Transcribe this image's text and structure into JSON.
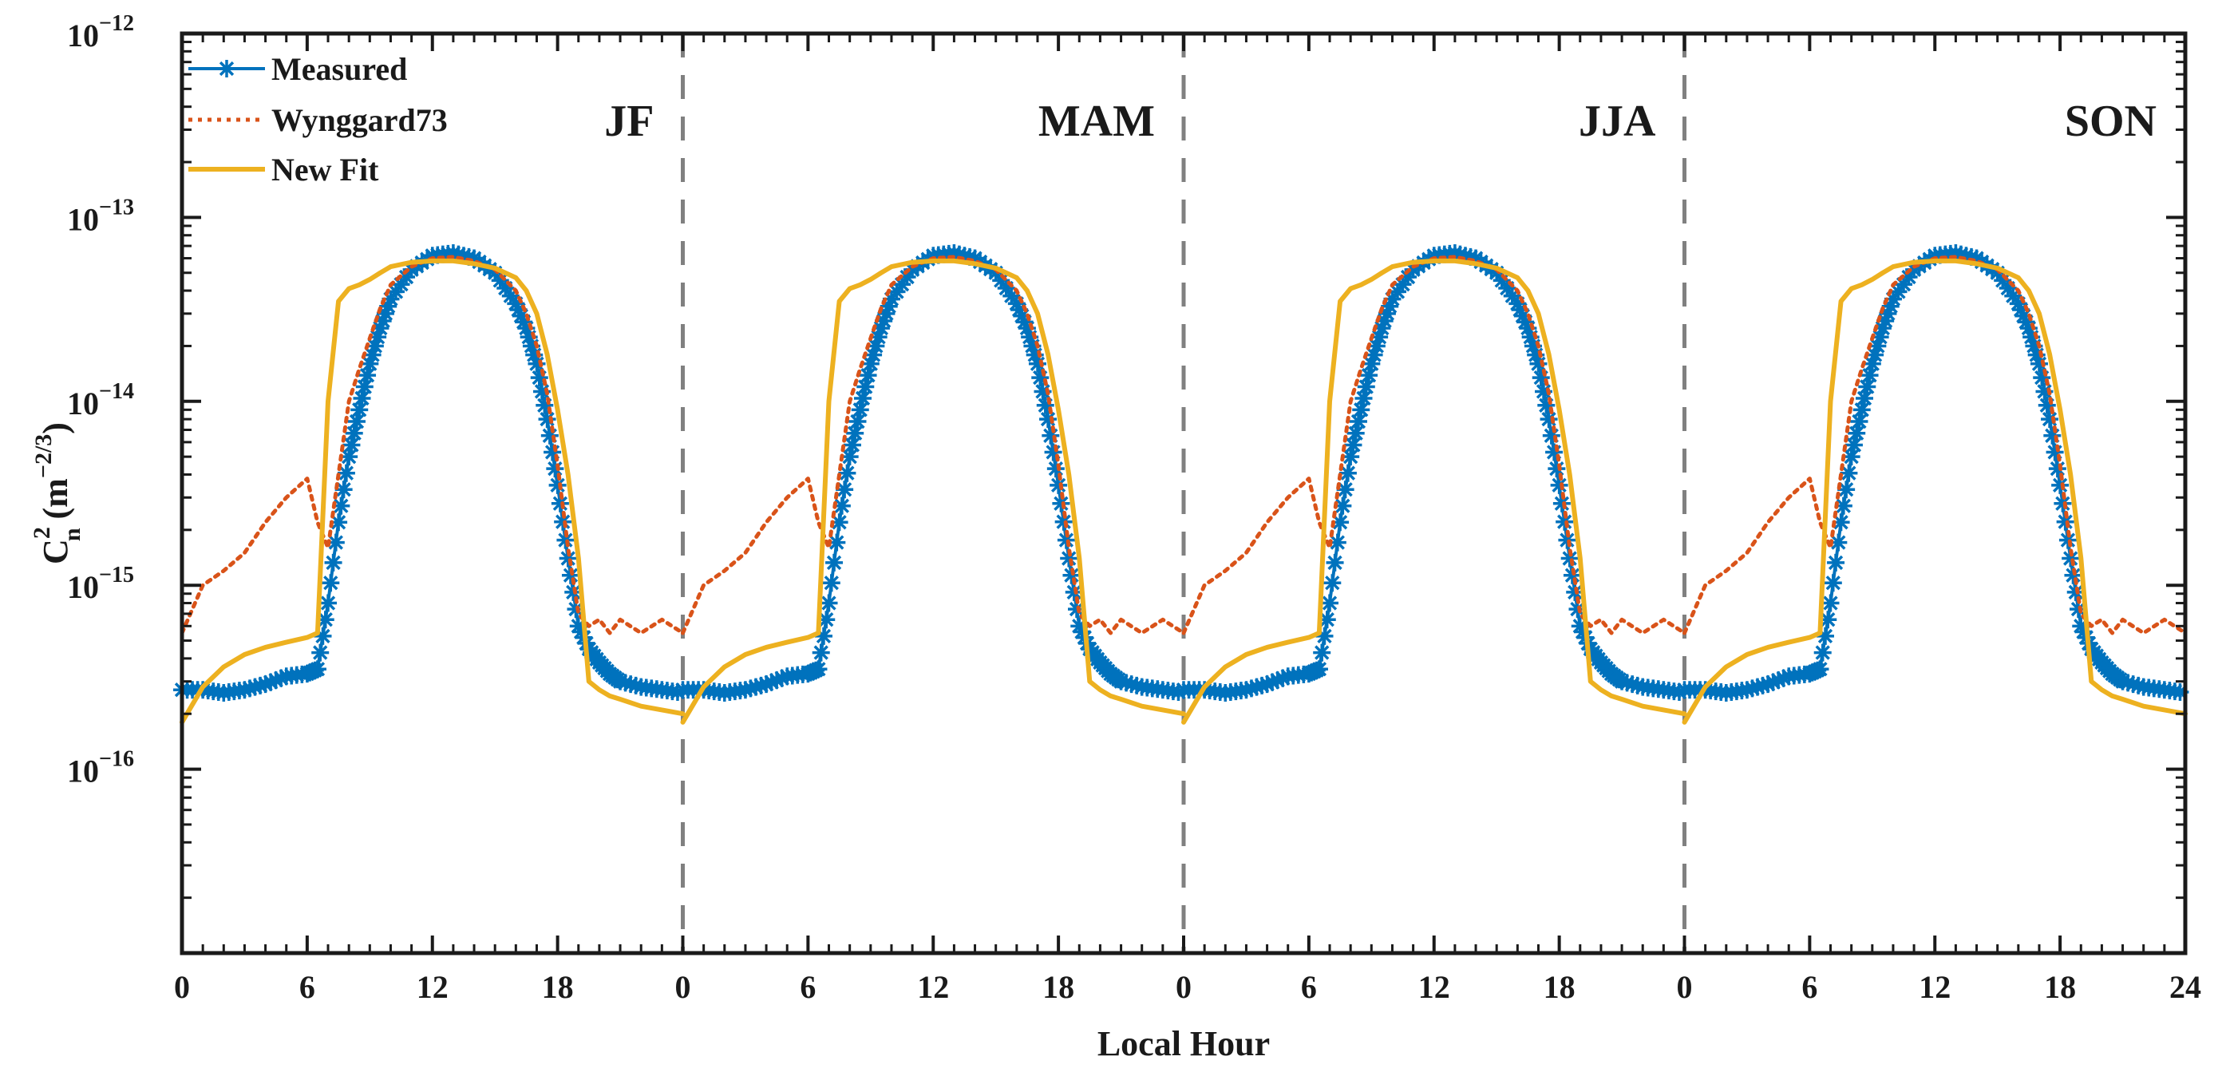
{
  "chart_data": {
    "type": "line",
    "xlabel": "Local Hour",
    "ylabel": {
      "base": "C",
      "sup": "2",
      "sub": "n",
      "units_prefix": " (m",
      "units_exp": "−2/3",
      "units_suffix": ")"
    },
    "yscale": "log",
    "ylim": [
      1e-17,
      1e-12
    ],
    "y_ticks": [
      {
        "base": "10",
        "exp": "−12",
        "value": 1e-12
      },
      {
        "base": "10",
        "exp": "−13",
        "value": 1e-13
      },
      {
        "base": "10",
        "exp": "−14",
        "value": 1e-14
      },
      {
        "base": "10",
        "exp": "−15",
        "value": 1e-15
      },
      {
        "base": "10",
        "exp": "−16",
        "value": 1e-16
      }
    ],
    "x_tick_labels": [
      "0",
      "6",
      "12",
      "18",
      "0",
      "6",
      "12",
      "18",
      "0",
      "6",
      "12",
      "18",
      "0",
      "6",
      "12",
      "18",
      "24"
    ],
    "panels": [
      "JF",
      "MAM",
      "JJA",
      "SON"
    ],
    "hours": [
      0,
      1,
      2,
      3,
      4,
      5,
      6,
      6.5,
      7,
      7.5,
      8,
      8.5,
      9,
      9.5,
      10,
      11,
      12,
      13,
      14,
      15,
      16,
      16.5,
      17,
      17.5,
      18,
      18.5,
      19,
      19.5,
      20,
      20.5,
      21,
      22,
      23,
      24
    ],
    "legend": [
      "Measured",
      "Wynggard73",
      "New Fit"
    ],
    "series": [
      {
        "name": "Measured",
        "color": "#0072BD",
        "values": [
          2.7e-16,
          2.7e-16,
          2.6e-16,
          2.7e-16,
          2.9e-16,
          3.2e-16,
          3.3e-16,
          3.5e-16,
          8e-16,
          2.2e-15,
          5e-15,
          9e-15,
          1.6e-14,
          2.5e-14,
          3.6e-14,
          5.2e-14,
          6.2e-14,
          6.4e-14,
          6e-14,
          5e-14,
          3.4e-14,
          2.5e-14,
          1.6e-14,
          8e-15,
          3.5e-15,
          1.4e-15,
          6e-16,
          4.5e-16,
          3.8e-16,
          3.3e-16,
          3e-16,
          2.8e-16,
          2.7e-16,
          2.6e-16
        ]
      },
      {
        "name": "Wynggard73",
        "color": "#D95319",
        "values": [
          5.5e-16,
          1e-15,
          1.2e-15,
          1.5e-15,
          2.2e-15,
          3e-15,
          3.8e-15,
          2.2e-15,
          1.6e-15,
          4e-15,
          1e-14,
          1.5e-14,
          2.2e-14,
          3.2e-14,
          4.3e-14,
          5.4e-14,
          6e-14,
          6.1e-14,
          5.8e-14,
          5.2e-14,
          4e-14,
          3e-14,
          2e-14,
          1.1e-14,
          4.5e-15,
          1.6e-15,
          7e-16,
          6e-16,
          6.5e-16,
          5.5e-16,
          6.5e-16,
          5.5e-16,
          6.5e-16,
          5.5e-16
        ]
      },
      {
        "name": "New Fit",
        "color": "#EDB120",
        "values": [
          1.8e-16,
          2.8e-16,
          3.6e-16,
          4.2e-16,
          4.6e-16,
          4.9e-16,
          5.2e-16,
          5.5e-16,
          1e-14,
          3.5e-14,
          4.1e-14,
          4.3e-14,
          4.6e-14,
          5e-14,
          5.4e-14,
          5.7e-14,
          5.8e-14,
          5.8e-14,
          5.6e-14,
          5.3e-14,
          4.7e-14,
          4e-14,
          3e-14,
          1.8e-14,
          9e-15,
          4e-15,
          1.4e-15,
          3e-16,
          2.7e-16,
          2.5e-16,
          2.4e-16,
          2.2e-16,
          2.1e-16,
          2e-16
        ]
      }
    ]
  }
}
